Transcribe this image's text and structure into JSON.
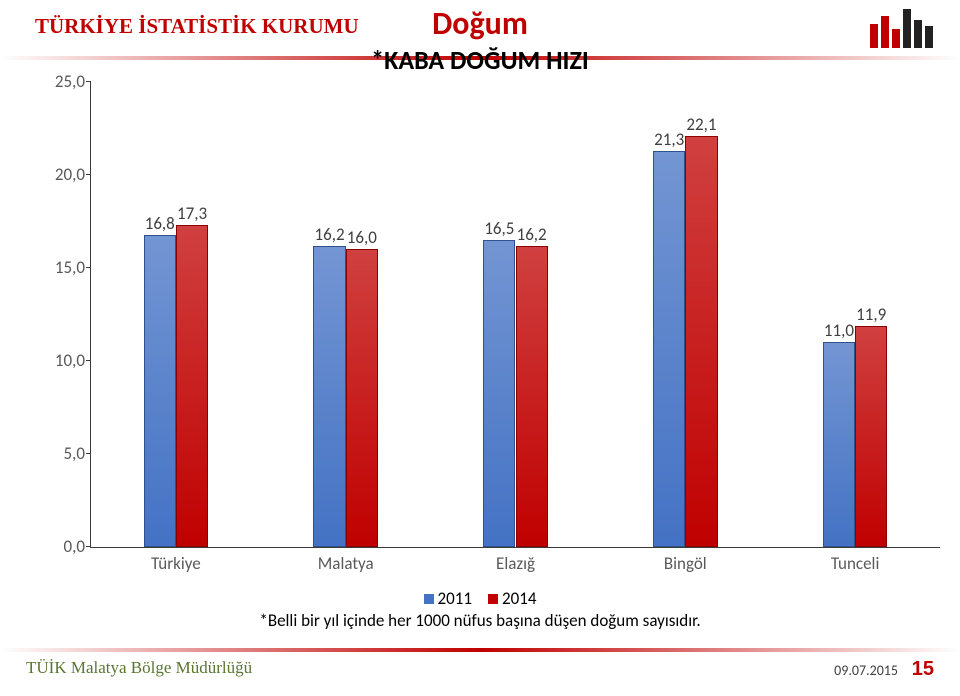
{
  "header": {
    "left_title": "TÜRKİYE İSTATİSTİK KURUMU",
    "left_title_color": "#c00000",
    "center_title": "Doğum",
    "center_title_color": "#c00000",
    "center_weight": "bold"
  },
  "chart": {
    "subtitle": "*KABA DOĞUM HIZI",
    "subtitle_color": "#000000",
    "subtitle_weight": "bold",
    "type": "bar",
    "ylim": [
      0,
      25
    ],
    "ytick_step": 5,
    "ytick_decimals": 1,
    "background": "#ffffff",
    "axis_color": "#3a3a3a",
    "label_color": "#595959",
    "label_fontsize": 17,
    "datalabel_fontsize": 17,
    "datalabel_color": "#404040",
    "categories": [
      "Türkiye",
      "Malatya",
      "Elazığ",
      "Bingöl",
      "Tunceli"
    ],
    "series": [
      {
        "name": "2011",
        "color": "#4472c4",
        "edge": "#2f528f",
        "values": [
          16.8,
          16.2,
          16.5,
          21.3,
          11.0
        ]
      },
      {
        "name": "2014",
        "color": "#c00000",
        "edge": "#8b0000",
        "values": [
          17.3,
          16.0,
          16.2,
          22.1,
          11.9
        ]
      }
    ],
    "bar_group_width_ratio": 0.38,
    "gap_between_bars": 0,
    "note": "*Belli bir yıl içinde her 1000 nüfus başına düşen doğum sayısıdır."
  },
  "footer": {
    "left": "TÜİK Malatya Bölge Müdürlüğü",
    "left_color": "#5a7530",
    "date": "09.07.2015",
    "page": "15",
    "page_color": "#c00000"
  },
  "legend": {
    "fontsize": 17
  }
}
